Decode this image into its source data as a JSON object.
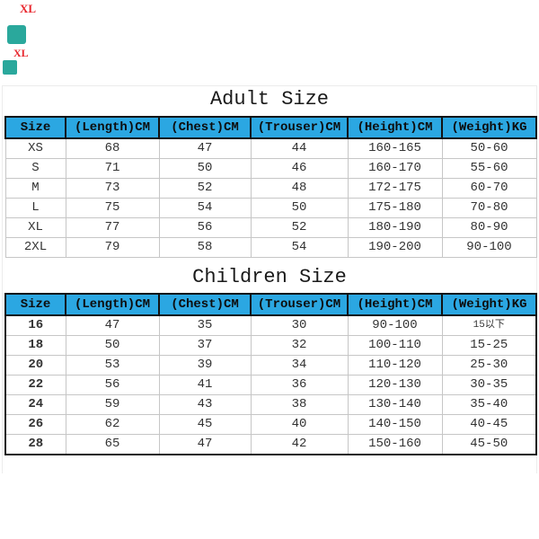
{
  "page": {
    "background": "#ffffff",
    "description": "Apparel size chart graphic with adult and children sizing tables"
  },
  "colors": {
    "header_bg": "#2ba7e2",
    "header_border": "#121212",
    "grid_line": "#c6c6c6",
    "body_text": "#333333",
    "title_text": "#1a1a1a",
    "watermark_red": "#e8262d",
    "watermark_teal": "#2aa89c"
  },
  "watermark": {
    "texts": [
      "XL",
      "XL"
    ]
  },
  "chart_data": [
    {
      "type": "table",
      "title": "Adult Size",
      "headers": [
        "Size",
        "(Length)CM",
        "(Chest)CM",
        "(Trouser)CM",
        "(Height)CM",
        "(Weight)KG"
      ],
      "rows": [
        [
          "XS",
          "68",
          "47",
          "44",
          "160-165",
          "50-60"
        ],
        [
          "S",
          "71",
          "50",
          "46",
          "160-170",
          "55-60"
        ],
        [
          "M",
          "73",
          "52",
          "48",
          "172-175",
          "60-70"
        ],
        [
          "L",
          "75",
          "54",
          "50",
          "175-180",
          "70-80"
        ],
        [
          "XL",
          "77",
          "56",
          "52",
          "180-190",
          "80-90"
        ],
        [
          "2XL",
          "79",
          "58",
          "54",
          "190-200",
          "90-100"
        ]
      ]
    },
    {
      "type": "table",
      "title": "Children Size",
      "headers": [
        "Size",
        "(Length)CM",
        "(Chest)CM",
        "(Trouser)CM",
        "(Height)CM",
        "(Weight)KG"
      ],
      "rows": [
        [
          "16",
          "47",
          "35",
          "30",
          "90-100",
          "15以下"
        ],
        [
          "18",
          "50",
          "37",
          "32",
          "100-110",
          "15-25"
        ],
        [
          "20",
          "53",
          "39",
          "34",
          "110-120",
          "25-30"
        ],
        [
          "22",
          "56",
          "41",
          "36",
          "120-130",
          "30-35"
        ],
        [
          "24",
          "59",
          "43",
          "38",
          "130-140",
          "35-40"
        ],
        [
          "26",
          "62",
          "45",
          "40",
          "140-150",
          "40-45"
        ],
        [
          "28",
          "65",
          "47",
          "42",
          "150-160",
          "45-50"
        ]
      ]
    }
  ]
}
